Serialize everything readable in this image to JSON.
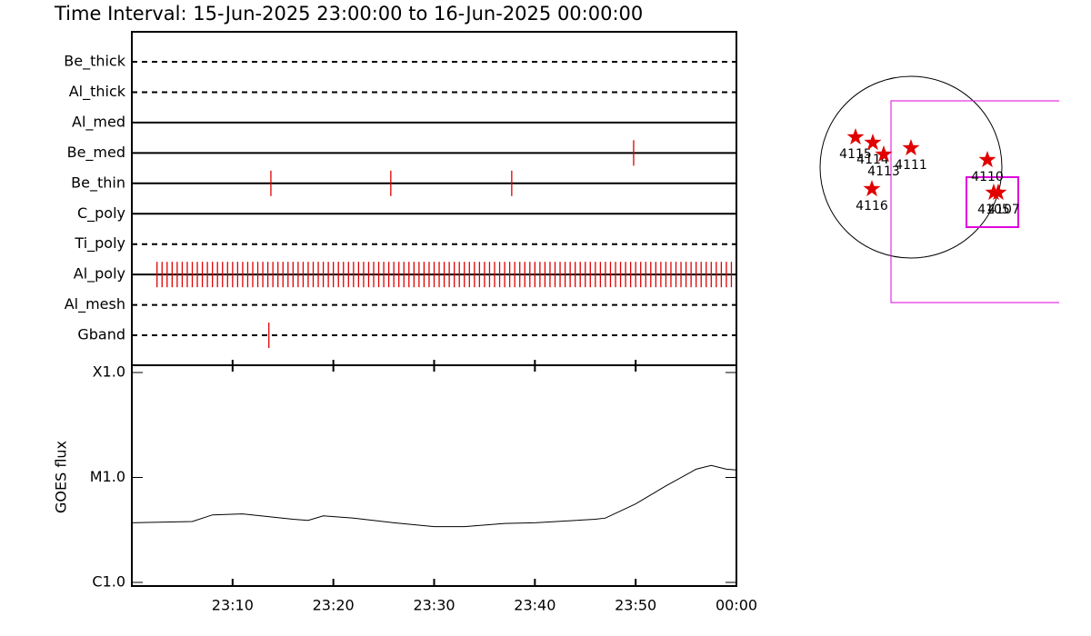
{
  "chart_data": [
    {
      "type": "event",
      "title": "Time Interval: 15-Jun-2025 23:00:00 to 16-Jun-2025 00:00:00",
      "xlim": [
        0,
        60
      ],
      "color": "#e00000",
      "rows": [
        {
          "name": "Be_thick",
          "style": "dashed",
          "events": []
        },
        {
          "name": "Al_thick",
          "style": "dashed",
          "events": []
        },
        {
          "name": "Al_med",
          "style": "solid",
          "events": []
        },
        {
          "name": "Be_med",
          "style": "solid",
          "events": [
            49.8
          ]
        },
        {
          "name": "Be_thin",
          "style": "solid",
          "events": [
            13.8,
            25.7,
            37.7
          ]
        },
        {
          "name": "C_poly",
          "style": "solid",
          "events": []
        },
        {
          "name": "Ti_poly",
          "style": "dashed",
          "events": []
        },
        {
          "name": "Al_poly",
          "style": "solid",
          "events": [
            2.5,
            3,
            3.5,
            4,
            4.5,
            5,
            5.5,
            6,
            6.5,
            7,
            7.5,
            8,
            8.5,
            9,
            9.5,
            10,
            10.5,
            11,
            11.5,
            12,
            12.5,
            13,
            13.5,
            14,
            14.5,
            15,
            15.5,
            16,
            16.5,
            17,
            17.5,
            18,
            18.5,
            19,
            19.5,
            20,
            20.5,
            21,
            21.5,
            22,
            22.5,
            23,
            23.5,
            24,
            24.5,
            25,
            25.5,
            26,
            26.5,
            27,
            27.5,
            28,
            28.5,
            29,
            29.5,
            30,
            30.5,
            31,
            31.5,
            32,
            32.5,
            33,
            33.5,
            34,
            34.5,
            35,
            35.5,
            36,
            36.5,
            37,
            37.5,
            38,
            38.5,
            39,
            39.5,
            40,
            40.5,
            41,
            41.5,
            42,
            42.5,
            43,
            43.5,
            44,
            44.5,
            45,
            45.5,
            46,
            46.5,
            47,
            47.5,
            48,
            48.5,
            49,
            49.5,
            50,
            50.5,
            51,
            51.5,
            52,
            52.5,
            53,
            53.5,
            54,
            54.5,
            55,
            55.5,
            56,
            56.5,
            57,
            57.5,
            58,
            58.5,
            59,
            59.5
          ]
        },
        {
          "name": "Al_mesh",
          "style": "dashed",
          "events": []
        },
        {
          "name": "Gband",
          "style": "dashed",
          "events": [
            13.6
          ]
        }
      ]
    },
    {
      "type": "line",
      "ylabel": "GOES flux",
      "log": true,
      "color": "#000000",
      "xlim": [
        0,
        60
      ],
      "ylim": [
        1e-06,
        0.0001
      ],
      "xticks": [
        {
          "value": 10,
          "label": "23:10"
        },
        {
          "value": 20,
          "label": "23:20"
        },
        {
          "value": 30,
          "label": "23:30"
        },
        {
          "value": 40,
          "label": "23:40"
        },
        {
          "value": 50,
          "label": "23:50"
        },
        {
          "value": 60,
          "label": "00:00"
        }
      ],
      "yticks": [
        {
          "value": 1e-06,
          "label": "C1.0"
        },
        {
          "value": 1e-05,
          "label": "M1.0"
        },
        {
          "value": 0.0001,
          "label": "X1.0"
        }
      ],
      "x": [
        0,
        6,
        8,
        11,
        16,
        17.5,
        19,
        22,
        26,
        30,
        33,
        37,
        40,
        46,
        47,
        50,
        53,
        56,
        57.5,
        59,
        60
      ],
      "values": [
        3.7e-06,
        3.8e-06,
        4.4e-06,
        4.5e-06,
        4e-06,
        3.9e-06,
        4.3e-06,
        4.1e-06,
        3.7e-06,
        3.4e-06,
        3.4e-06,
        3.65e-06,
        3.7e-06,
        4e-06,
        4.1e-06,
        5.6e-06,
        8.3e-06,
        1.2e-05,
        1.3e-05,
        1.2e-05,
        1.18e-05
      ]
    }
  ],
  "map": {
    "regions": [
      "4115",
      "4114",
      "4113",
      "4111",
      "4110",
      "4116",
      "4105",
      "4107"
    ]
  }
}
